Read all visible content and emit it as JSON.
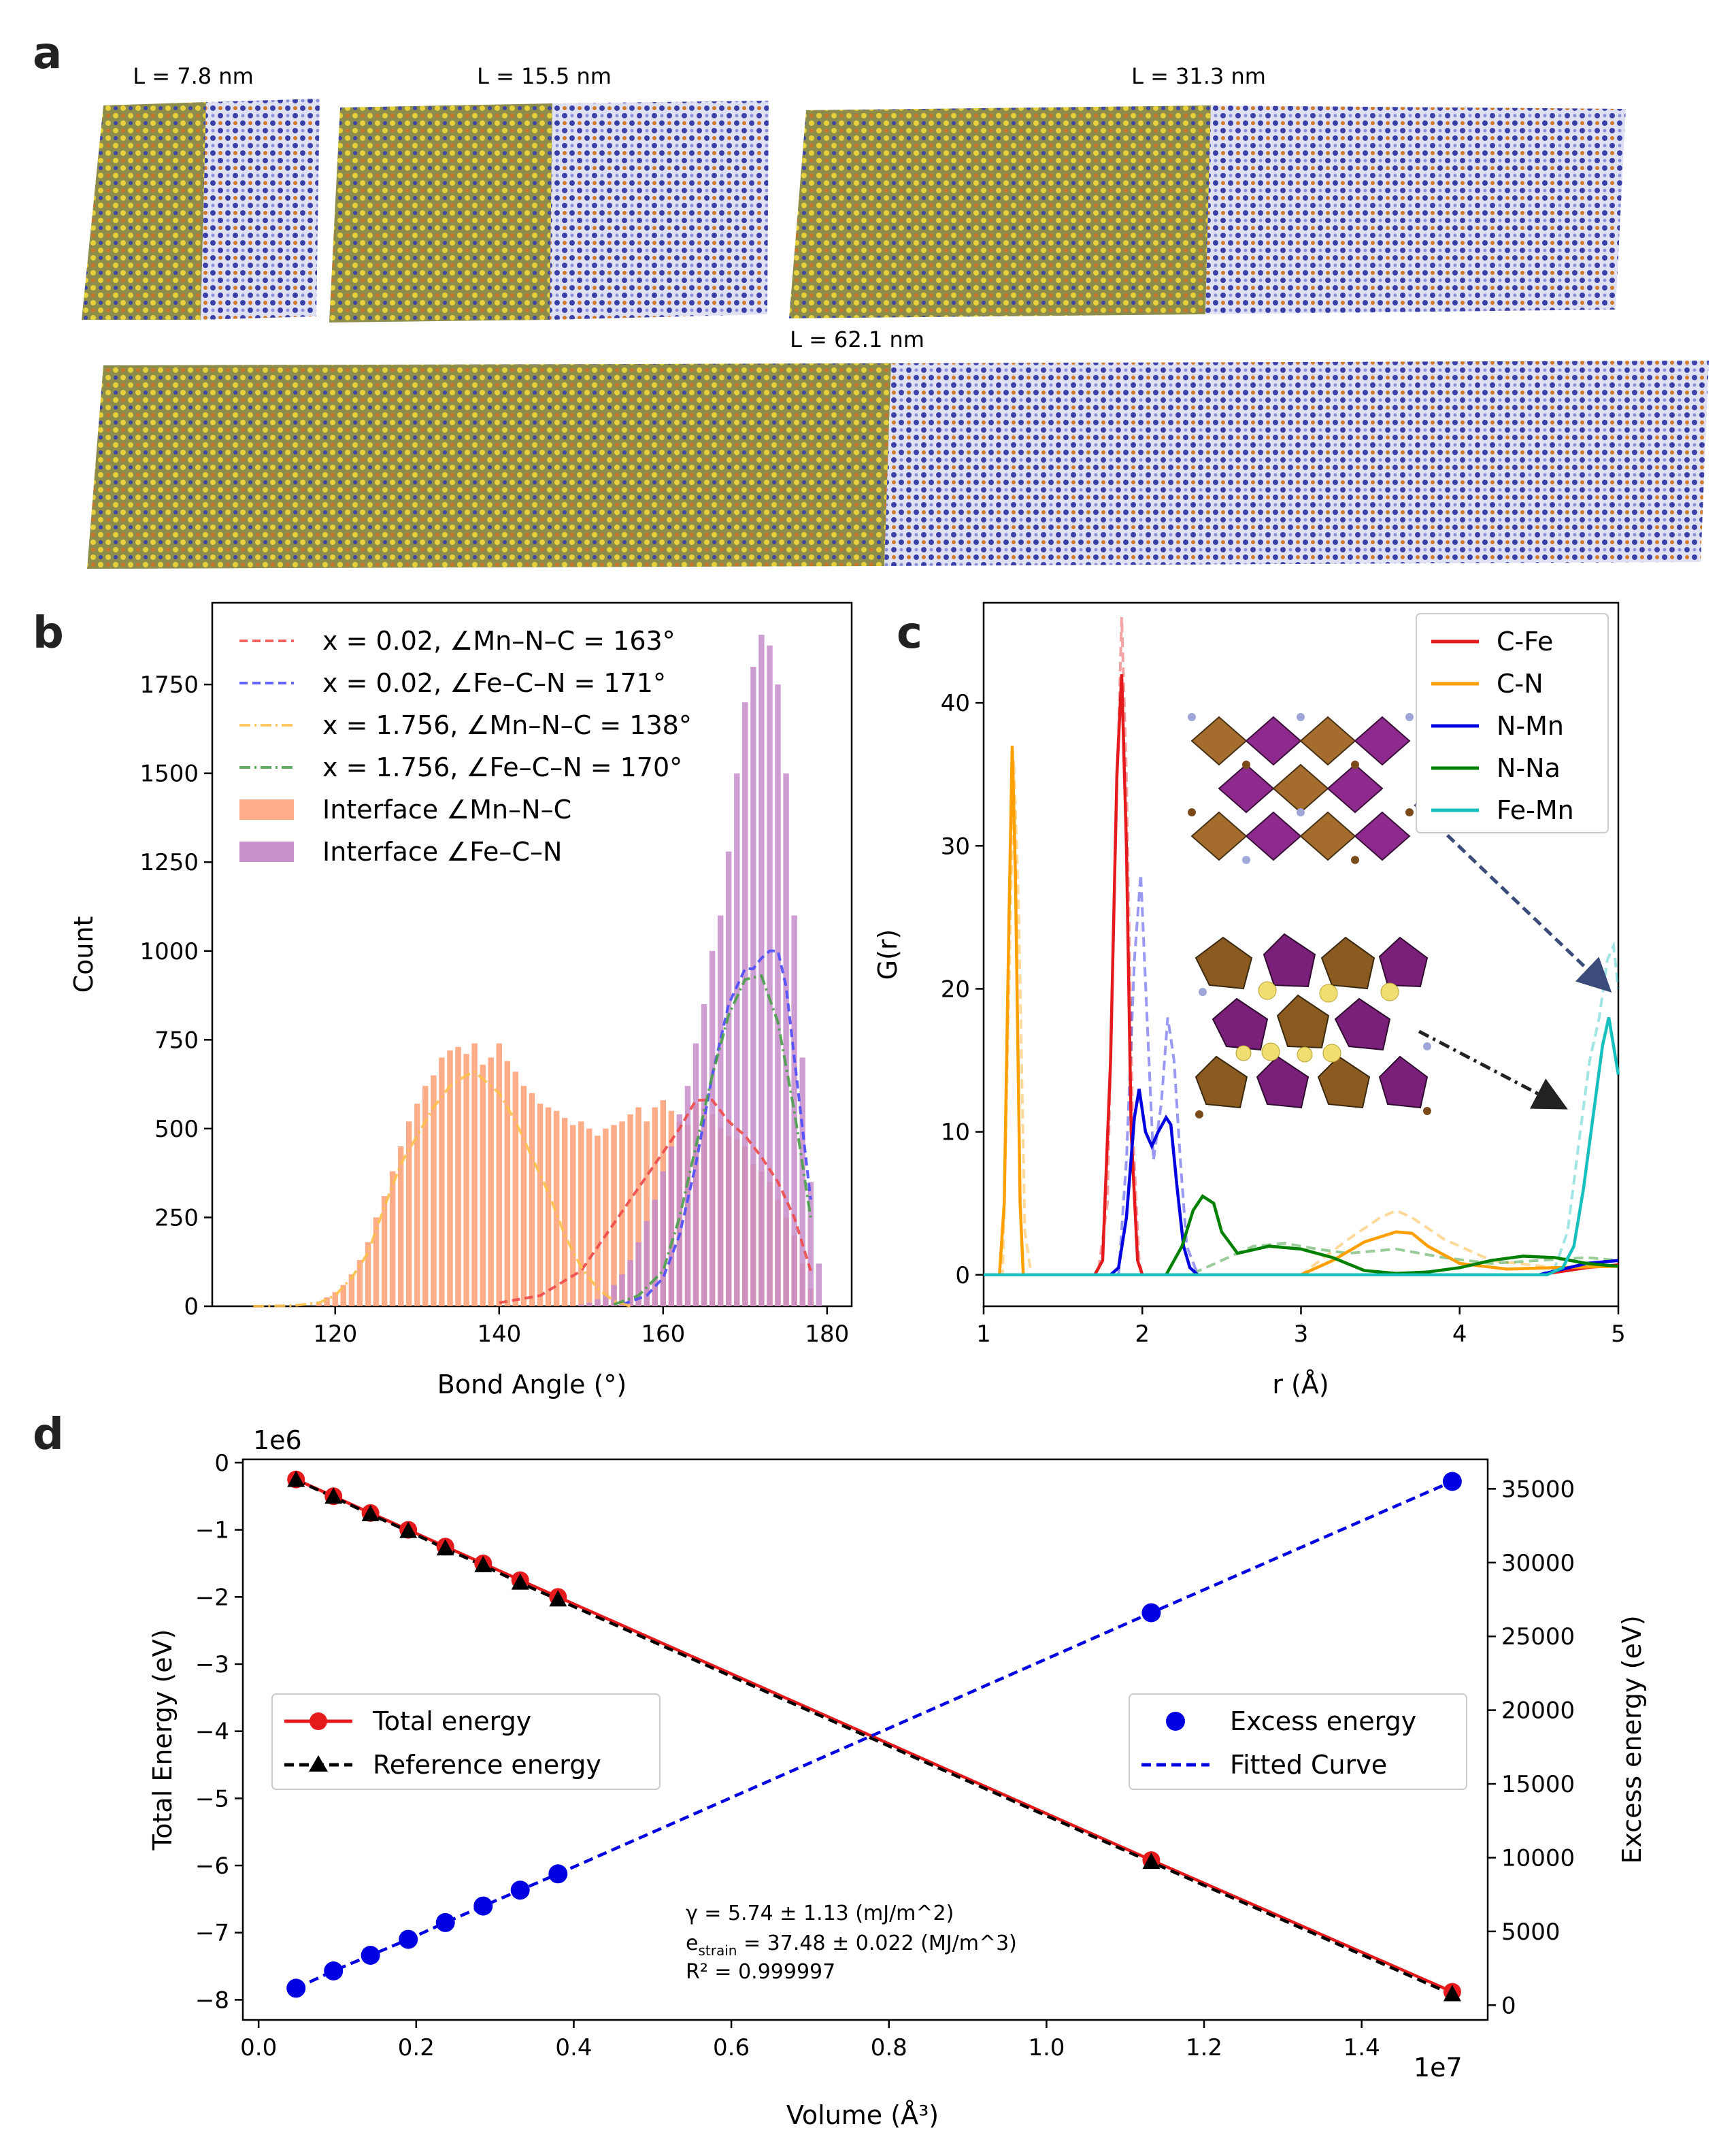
{
  "colors": {
    "cfe": "#e41a1c",
    "cn": "#ff9f00",
    "nmn": "#0000e0",
    "nna": "#008000",
    "femn": "#17bfbf",
    "orange_bar": "#ff9d73",
    "purple_bar": "#c58cc9",
    "mn_red": "#ee4a4a",
    "fe_blue": "#4c4cff",
    "mn_yellow": "#ffc04c",
    "fe_green": "#4aa04a",
    "struct_yellow": "#e8d23a",
    "struct_blue": "#3d45a8",
    "struct_orange": "#d07a2a"
  },
  "panels": {
    "a": "a",
    "b": "b",
    "c": "c",
    "d": "d"
  },
  "panel_a": {
    "labels": [
      "L = 7.8 nm",
      "L = 15.5 nm",
      "L = 31.3 nm",
      "L = 62.1 nm"
    ]
  },
  "chart_data": [
    {
      "id": "b",
      "type": "bar",
      "xlabel": "Bond Angle (°)",
      "ylabel": "Count",
      "xlim": [
        105,
        183
      ],
      "ylim": [
        0,
        1980
      ],
      "xticks": [
        120,
        140,
        160,
        180
      ],
      "yticks": [
        0,
        250,
        500,
        750,
        1000,
        1250,
        1500,
        1750
      ],
      "legend": [
        "x = 0.02, ∠Mn–N–C = 163°",
        "x = 0.02, ∠Fe–C–N = 171°",
        "x = 1.756, ∠Mn–N–C = 138°",
        "x = 1.756, ∠Fe–C–N = 170°",
        "Interface ∠Mn–N–C",
        "Interface ∠Fe–C–N"
      ],
      "bars_mn": {
        "x": [
          118,
          119,
          120,
          121,
          122,
          123,
          124,
          125,
          126,
          127,
          128,
          129,
          130,
          131,
          132,
          133,
          134,
          135,
          136,
          137,
          138,
          139,
          140,
          141,
          142,
          143,
          144,
          145,
          146,
          147,
          148,
          149,
          150,
          151,
          152,
          153,
          154,
          155,
          156,
          157,
          158,
          159,
          160,
          161,
          162,
          163,
          164,
          165,
          166,
          167,
          168,
          169,
          170,
          171,
          172,
          173,
          174,
          175,
          176,
          177,
          178
        ],
        "y": [
          10,
          25,
          40,
          60,
          90,
          130,
          180,
          250,
          310,
          380,
          450,
          520,
          570,
          620,
          650,
          700,
          720,
          730,
          710,
          740,
          680,
          700,
          740,
          690,
          660,
          620,
          600,
          570,
          560,
          550,
          530,
          510,
          520,
          500,
          480,
          500,
          510,
          520,
          540,
          560,
          520,
          560,
          580,
          550,
          520,
          510,
          570,
          560,
          540,
          500,
          480,
          470,
          450,
          400,
          380,
          350,
          300,
          250,
          200,
          120,
          50
        ]
      },
      "bars_fe": {
        "x": [
          150,
          151,
          152,
          153,
          154,
          155,
          156,
          157,
          158,
          159,
          160,
          161,
          162,
          163,
          164,
          165,
          166,
          167,
          168,
          169,
          170,
          171,
          172,
          173,
          174,
          175,
          176,
          177,
          178,
          179
        ],
        "y": [
          5,
          10,
          20,
          35,
          60,
          90,
          130,
          180,
          240,
          300,
          380,
          450,
          540,
          620,
          740,
          850,
          1000,
          1100,
          1280,
          1500,
          1700,
          1800,
          1890,
          1860,
          1750,
          1500,
          1100,
          700,
          350,
          120
        ]
      },
      "series": [
        {
          "name": "x = 0.02, ∠Mn–N–C = 163°",
          "x": [
            140,
            145,
            150,
            153,
            156,
            159,
            162,
            164,
            166,
            168,
            170,
            172,
            174,
            176,
            178
          ],
          "y": [
            10,
            30,
            100,
            200,
            300,
            400,
            500,
            580,
            580,
            520,
            480,
            420,
            350,
            250,
            100
          ]
        },
        {
          "name": "x = 0.02, ∠Fe–C–N = 171°",
          "x": [
            155,
            158,
            160,
            162,
            164,
            166,
            168,
            170,
            171,
            172,
            173,
            174,
            175,
            176,
            177,
            178
          ],
          "y": [
            5,
            30,
            80,
            200,
            400,
            650,
            850,
            950,
            950,
            980,
            1000,
            1000,
            900,
            700,
            500,
            300
          ]
        },
        {
          "name": "x = 1.756, ∠Mn–N–C = 138°",
          "x": [
            110,
            115,
            118,
            120,
            122,
            124,
            126,
            128,
            130,
            132,
            134,
            136,
            137,
            138,
            140,
            142,
            144,
            146,
            148,
            150,
            152,
            154,
            156
          ],
          "y": [
            0,
            2,
            10,
            30,
            80,
            150,
            280,
            400,
            480,
            560,
            620,
            650,
            660,
            640,
            600,
            520,
            420,
            320,
            200,
            110,
            50,
            15,
            0
          ]
        },
        {
          "name": "x = 1.756, ∠Fe–C–N = 170°",
          "x": [
            154,
            157,
            160,
            162,
            164,
            166,
            168,
            170,
            172,
            174,
            176,
            178
          ],
          "y": [
            5,
            30,
            100,
            250,
            450,
            650,
            820,
            920,
            930,
            800,
            550,
            250
          ]
        }
      ]
    },
    {
      "id": "c",
      "type": "line",
      "xlabel": "r (Å)",
      "ylabel": "G(r)",
      "xlim": [
        1,
        5
      ],
      "ylim": [
        -2.2,
        47
      ],
      "xticks": [
        1,
        2,
        3,
        4,
        5
      ],
      "yticks": [
        0,
        10,
        20,
        30,
        40
      ],
      "legend": [
        "C-Fe",
        "C-N",
        "N-Mn",
        "N-Na",
        "Fe-Mn"
      ],
      "series": [
        {
          "name": "C-Fe",
          "x": [
            1.0,
            1.7,
            1.75,
            1.8,
            1.84,
            1.87,
            1.9,
            1.93,
            1.97,
            2.0,
            4.5,
            4.8,
            5.0
          ],
          "y": [
            0,
            0,
            1,
            15,
            35,
            42,
            30,
            10,
            1,
            0,
            0,
            0.5,
            0.7
          ]
        },
        {
          "name": "C-N",
          "x": [
            1.0,
            1.1,
            1.13,
            1.16,
            1.18,
            1.2,
            1.23,
            1.25,
            1.3,
            3.0,
            3.2,
            3.4,
            3.6,
            3.7,
            3.8,
            4.0,
            4.3,
            4.6,
            5.0
          ],
          "y": [
            0,
            0,
            5,
            25,
            37,
            28,
            5,
            0,
            0,
            0,
            1,
            2.3,
            3,
            2.9,
            2,
            0.8,
            0.4,
            0.5,
            0.6
          ]
        },
        {
          "name": "N-Mn",
          "x": [
            1.0,
            1.8,
            1.85,
            1.9,
            1.95,
            1.98,
            2.02,
            2.06,
            2.1,
            2.15,
            2.18,
            2.22,
            2.26,
            2.3,
            2.35,
            4.5,
            4.8,
            5.0
          ],
          "y": [
            0,
            0,
            0.5,
            4,
            11,
            13,
            10,
            9,
            10,
            11,
            10.5,
            6,
            2,
            0.5,
            0,
            0,
            0.8,
            1
          ]
        },
        {
          "name": "N-Na",
          "x": [
            1.0,
            2.15,
            2.25,
            2.32,
            2.38,
            2.45,
            2.5,
            2.6,
            2.8,
            3.0,
            3.2,
            3.4,
            3.6,
            3.8,
            4.0,
            4.2,
            4.4,
            4.6,
            4.8,
            5.0
          ],
          "y": [
            0,
            0,
            2,
            4.5,
            5.5,
            5,
            3,
            1.5,
            2,
            1.8,
            1.2,
            0.3,
            0.1,
            0.2,
            0.5,
            1,
            1.3,
            1.2,
            0.8,
            0.6
          ]
        },
        {
          "name": "Fe-Mn",
          "x": [
            1.0,
            4.55,
            4.65,
            4.72,
            4.78,
            4.84,
            4.9,
            4.94,
            4.97,
            5.0
          ],
          "y": [
            0,
            0,
            0.5,
            2,
            6,
            11,
            16,
            18,
            16,
            14
          ]
        }
      ],
      "dashed": [
        {
          "name": "C-Fe-ref",
          "x": [
            1.0,
            1.72,
            1.78,
            1.83,
            1.87,
            1.9,
            1.94,
            1.98,
            2.0
          ],
          "y": [
            0,
            0,
            5,
            30,
            46,
            35,
            10,
            1,
            0
          ]
        },
        {
          "name": "C-N-ref",
          "x": [
            1.0,
            1.12,
            1.16,
            1.19,
            1.22,
            1.26,
            1.3,
            3.0,
            3.3,
            3.5,
            3.6,
            3.7,
            3.9,
            4.2,
            4.6,
            5.0
          ],
          "y": [
            0,
            0,
            20,
            36,
            26,
            3,
            0,
            0,
            2.5,
            4,
            4.5,
            4,
            2.5,
            1,
            0.5,
            0.6
          ]
        },
        {
          "name": "N-Mn-ref",
          "x": [
            1.0,
            1.85,
            1.9,
            1.95,
            1.99,
            2.03,
            2.07,
            2.12,
            2.16,
            2.2,
            2.24,
            2.28,
            2.35
          ],
          "y": [
            0,
            0,
            8,
            22,
            28,
            18,
            8,
            12,
            18,
            15,
            8,
            2,
            0
          ]
        },
        {
          "name": "N-Na-ref",
          "x": [
            1.0,
            2.3,
            2.5,
            2.7,
            2.9,
            3.1,
            3.3,
            3.6,
            3.9,
            4.2,
            4.5,
            4.8,
            5.0
          ],
          "y": [
            0,
            0,
            1,
            2,
            2.2,
            1.8,
            1.5,
            1.8,
            1.2,
            0.8,
            1,
            1.2,
            1
          ]
        },
        {
          "name": "Fe-Mn-ref",
          "x": [
            1.0,
            4.5,
            4.6,
            4.68,
            4.76,
            4.82,
            4.88,
            4.93,
            4.97,
            5.0
          ],
          "y": [
            0,
            0,
            0.5,
            3,
            10,
            15,
            18,
            22,
            23,
            20
          ]
        }
      ]
    },
    {
      "id": "d",
      "type": "line",
      "xlabel": "Volume (Å³)",
      "ylabel_left": "Total Energy (eV)",
      "ylabel_right": "Excess energy (eV)",
      "x_scale_label": "1e7",
      "y_scale_label": "1e6",
      "xlim": [
        -0.02,
        1.56
      ],
      "ylim_left": [
        -8.3,
        0.05
      ],
      "ylim_right": [
        -1000,
        37000
      ],
      "xticks": [
        0.0,
        0.2,
        0.4,
        0.6,
        0.8,
        1.0,
        1.2,
        1.4
      ],
      "yticks_left": [
        0,
        -1,
        -2,
        -3,
        -4,
        -5,
        -6,
        -7,
        -8
      ],
      "yticks_right": [
        0,
        5000,
        10000,
        15000,
        20000,
        25000,
        30000,
        35000
      ],
      "legend_left": [
        "Total energy",
        "Reference energy"
      ],
      "legend_right": [
        "Excess energy",
        "Fitted Curve"
      ],
      "volume": [
        0.0475,
        0.095,
        0.142,
        0.19,
        0.237,
        0.285,
        0.332,
        0.38,
        1.133,
        1.515
      ],
      "total_energy": [
        -0.25,
        -0.5,
        -0.75,
        -1.0,
        -1.25,
        -1.5,
        -1.75,
        -2.0,
        -5.92,
        -7.88
      ],
      "reference_energy": [
        -0.26,
        -0.51,
        -0.77,
        -1.02,
        -1.28,
        -1.53,
        -1.79,
        -2.04,
        -5.95,
        -7.92
      ],
      "excess_energy": [
        1150,
        2320,
        3380,
        4460,
        5600,
        6720,
        7800,
        8900,
        26600,
        35500
      ],
      "annotation": {
        "line1": "γ = 5.74 ± 1.13 (mJ/m^2)",
        "line2_a": "e",
        "line2_sub": "strain",
        "line2_b": " = 37.48 ± 0.022 (MJ/m^3)",
        "line3": "R² = 0.999997"
      }
    }
  ]
}
